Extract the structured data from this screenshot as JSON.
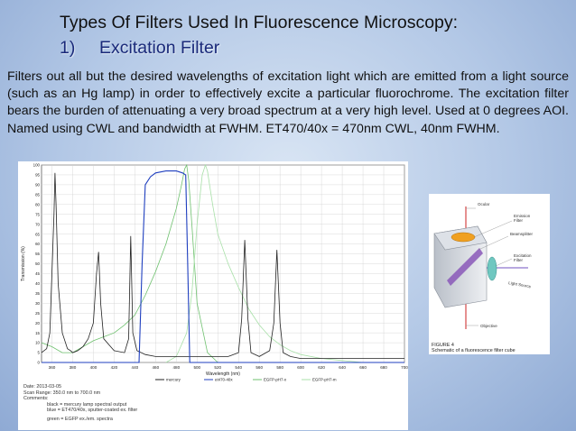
{
  "slide": {
    "title": "Types Of  Filters Used In Fluorescence Microscopy:",
    "subtitle_number": "1)",
    "subtitle_text": "Excitation Filter",
    "body": "Filters out all but the desired wavelengths of excitation light which are emitted from a light source (such as an Hg lamp) in order to effectively excite a particular fluorochrome.  The excitation filter bears the burden of attenuating a very broad spectrum at a very high level.  Used at 0 degrees AOI.  Named using CWL and bandwidth at FWHM.  ET470/40x = 470nm CWL, 40nm FWHM."
  },
  "chart_data": {
    "type": "line",
    "title": "",
    "xlabel": "Wavelength (nm)",
    "ylabel": "Transmission (%)",
    "xlim": [
      350,
      700
    ],
    "ylim": [
      0,
      100
    ],
    "x_ticks": [
      360,
      380,
      400,
      420,
      440,
      460,
      480,
      500,
      520,
      540,
      560,
      580,
      600,
      620,
      640,
      660,
      680,
      700
    ],
    "y_ticks": [
      0,
      5,
      10,
      15,
      20,
      25,
      30,
      35,
      40,
      45,
      50,
      55,
      60,
      65,
      70,
      75,
      80,
      85,
      90,
      95,
      100
    ],
    "grid": true,
    "legend_position": "bottom",
    "series": [
      {
        "name": "mercury",
        "color": "#222222",
        "x": [
          350,
          355,
          358,
          362,
          363,
          364,
          366,
          370,
          375,
          378,
          380,
          385,
          390,
          395,
          400,
          403,
          405,
          407,
          410,
          420,
          430,
          434,
          436,
          438,
          442,
          450,
          460,
          470,
          480,
          490,
          500,
          510,
          520,
          530,
          540,
          543,
          546,
          549,
          552,
          560,
          570,
          574,
          577,
          580,
          583,
          590,
          600,
          620,
          640,
          660,
          680,
          700
        ],
        "y": [
          5,
          7,
          15,
          75,
          96,
          80,
          40,
          15,
          7,
          6,
          5,
          6,
          8,
          12,
          20,
          45,
          56,
          30,
          12,
          6,
          5,
          12,
          64,
          15,
          6,
          4,
          3,
          3,
          3,
          3,
          3,
          3,
          3,
          3,
          5,
          22,
          62,
          22,
          5,
          3,
          6,
          20,
          57,
          20,
          5,
          3,
          2,
          2,
          2,
          2,
          2,
          2
        ]
      },
      {
        "name": "et470-40x",
        "color": "#1f3fbf",
        "x": [
          350,
          444,
          447,
          450,
          455,
          460,
          470,
          480,
          486,
          489,
          491,
          493,
          700
        ],
        "y": [
          0,
          0,
          50,
          90,
          94,
          96,
          97,
          97,
          96,
          95,
          50,
          0,
          0
        ]
      },
      {
        "name": "EGFP-pH7-x",
        "color": "#6fc16f",
        "x": [
          350,
          360,
          370,
          380,
          390,
          400,
          410,
          420,
          430,
          440,
          450,
          460,
          470,
          480,
          485,
          488,
          490,
          492,
          495,
          500,
          510,
          520
        ],
        "y": [
          10,
          8,
          5,
          5,
          8,
          11,
          13,
          15,
          19,
          24,
          34,
          46,
          60,
          78,
          90,
          98,
          100,
          92,
          70,
          30,
          5,
          0
        ]
      },
      {
        "name": "EGFP-pH7-m",
        "color": "#a8e0a8",
        "x": [
          470,
          480,
          490,
          495,
          500,
          505,
          508,
          510,
          512,
          515,
          520,
          530,
          540,
          550,
          560,
          570,
          580,
          590,
          600,
          620,
          640,
          660,
          700
        ],
        "y": [
          0,
          3,
          15,
          35,
          70,
          95,
          100,
          97,
          90,
          80,
          65,
          50,
          38,
          27,
          19,
          13,
          9,
          6,
          4,
          2,
          1,
          0,
          0
        ]
      }
    ],
    "notes": {
      "date_label": "Date:",
      "date_value": "2013-03-05",
      "scan_range_label": "Scan Range:",
      "scan_range_value": "350.0  nm to  700.0  nm",
      "comments_label": "Comments:",
      "comment_1": "black = mercury lamp spectral output",
      "comment_2": "blue = ET470/40x, sputter-coated ex. filter",
      "comment_3": "green = EGFP ex./em. spectra"
    }
  },
  "figure": {
    "labels": {
      "ocular": "Ocular",
      "emission_filter": "Emission\nFilter",
      "beamsplitter": "Beamsplitter",
      "excitation_filter": "Excitation\nFilter",
      "light_source": "Light Source",
      "objective": "Objective"
    },
    "caption_1": "FIGURE 4",
    "caption_2": "Schematic of a fluorescence filter cube"
  }
}
